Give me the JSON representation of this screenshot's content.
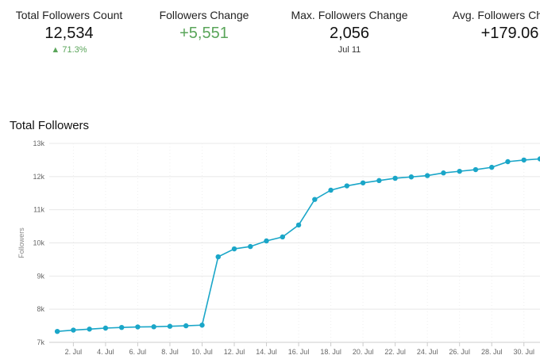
{
  "stats": {
    "total": {
      "label": "Total Followers Count",
      "value": "12,534",
      "sub": "▲ 71.3%"
    },
    "change": {
      "label": "Followers Change",
      "value": "+5,551"
    },
    "max": {
      "label": "Max. Followers Change",
      "value": "2,056",
      "sub": "Jul 11"
    },
    "avg": {
      "label": "Avg. Followers Change",
      "value": "+179.06"
    }
  },
  "colors": {
    "line": "#1aa6c8",
    "positive": "#5aa55a",
    "grid": "#e8e8e8"
  },
  "chart_data": {
    "type": "line",
    "title": "Total Followers",
    "ylabel": "Followers",
    "xlabel": "",
    "ylim": [
      7000,
      13000
    ],
    "yticks": [
      7000,
      8000,
      9000,
      10000,
      11000,
      12000,
      13000
    ],
    "ytick_labels": [
      "7k",
      "8k",
      "9k",
      "10k",
      "11k",
      "12k",
      "13k"
    ],
    "xlim": [
      0.5,
      31
    ],
    "xticks": [
      2,
      4,
      6,
      8,
      10,
      12,
      14,
      16,
      18,
      20,
      22,
      24,
      26,
      28,
      30
    ],
    "xtick_labels": [
      "2. Jul",
      "4. Jul",
      "6. Jul",
      "8. Jul",
      "10. Jul",
      "12. Jul",
      "14. Jul",
      "16. Jul",
      "18. Jul",
      "20. Jul",
      "22. Jul",
      "24. Jul",
      "26. Jul",
      "28. Jul",
      "30. Jul"
    ],
    "grid": true,
    "legend": "none",
    "series": [
      {
        "x": [
          1,
          2,
          3,
          4,
          5,
          6,
          7,
          8,
          9,
          10,
          11,
          12,
          13,
          14,
          15,
          16,
          17,
          18,
          19,
          20,
          21,
          22,
          23,
          24,
          25,
          26,
          27,
          28,
          29,
          30,
          31
        ],
        "values": [
          7330,
          7370,
          7400,
          7430,
          7450,
          7465,
          7470,
          7485,
          7500,
          7520,
          9580,
          9820,
          9890,
          10060,
          10180,
          10540,
          11310,
          11590,
          11720,
          11810,
          11880,
          11950,
          11990,
          12030,
          12110,
          12160,
          12210,
          12280,
          12450,
          12500,
          12534
        ]
      }
    ]
  }
}
